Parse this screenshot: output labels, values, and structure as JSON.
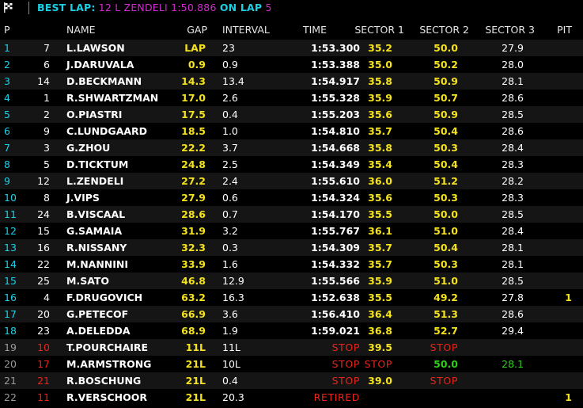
{
  "topbar": {
    "best_lap_label": "BEST LAP:",
    "best_lap_detail": "12 L ZENDELI 1:50.886",
    "on_lap_label": "ON LAP",
    "on_lap_value": "5"
  },
  "columns": {
    "pos": "P",
    "name": "NAME",
    "gap": "GAP",
    "interval": "INTERVAL",
    "time": "TIME",
    "s1": "SECTOR 1",
    "s2": "SECTOR 2",
    "s3": "SECTOR 3",
    "pit": "PIT"
  },
  "colors": {
    "accent_cyan": "#19d0e6",
    "accent_magenta": "#d22ad0",
    "yellow": "#f3e21d",
    "red": "#e8251b",
    "green": "#2ed11a",
    "grey": "#9a9a9a"
  },
  "rows": [
    {
      "pos": "1",
      "no": "7",
      "name": "L.LAWSON",
      "gap": "LAP",
      "interval": "23",
      "time": "1:53.300",
      "s1": "35.2",
      "s2": "50.0",
      "s3": "27.9",
      "pit": "",
      "status": "running"
    },
    {
      "pos": "2",
      "no": "6",
      "name": "J.DARUVALA",
      "gap": "0.9",
      "interval": "0.9",
      "time": "1:53.388",
      "s1": "35.0",
      "s2": "50.2",
      "s3": "28.0",
      "pit": "",
      "status": "running"
    },
    {
      "pos": "3",
      "no": "14",
      "name": "D.BECKMANN",
      "gap": "14.3",
      "interval": "13.4",
      "time": "1:54.917",
      "s1": "35.8",
      "s2": "50.9",
      "s3": "28.1",
      "pit": "",
      "status": "running"
    },
    {
      "pos": "4",
      "no": "1",
      "name": "R.SHWARTZMAN",
      "gap": "17.0",
      "interval": "2.6",
      "time": "1:55.328",
      "s1": "35.9",
      "s2": "50.7",
      "s3": "28.6",
      "pit": "",
      "status": "running"
    },
    {
      "pos": "5",
      "no": "2",
      "name": "O.PIASTRI",
      "gap": "17.5",
      "interval": "0.4",
      "time": "1:55.203",
      "s1": "35.6",
      "s2": "50.9",
      "s3": "28.5",
      "pit": "",
      "status": "running"
    },
    {
      "pos": "6",
      "no": "9",
      "name": "C.LUNDGAARD",
      "gap": "18.5",
      "interval": "1.0",
      "time": "1:54.810",
      "s1": "35.7",
      "s2": "50.4",
      "s3": "28.6",
      "pit": "",
      "status": "running"
    },
    {
      "pos": "7",
      "no": "3",
      "name": "G.ZHOU",
      "gap": "22.2",
      "interval": "3.7",
      "time": "1:54.668",
      "s1": "35.8",
      "s2": "50.3",
      "s3": "28.4",
      "pit": "",
      "status": "running"
    },
    {
      "pos": "8",
      "no": "5",
      "name": "D.TICKTUM",
      "gap": "24.8",
      "interval": "2.5",
      "time": "1:54.349",
      "s1": "35.4",
      "s2": "50.4",
      "s3": "28.3",
      "pit": "",
      "status": "running"
    },
    {
      "pos": "9",
      "no": "12",
      "name": "L.ZENDELI",
      "gap": "27.2",
      "interval": "2.4",
      "time": "1:55.610",
      "s1": "36.0",
      "s2": "51.2",
      "s3": "28.2",
      "pit": "",
      "status": "running"
    },
    {
      "pos": "10",
      "no": "8",
      "name": "J.VIPS",
      "gap": "27.9",
      "interval": "0.6",
      "time": "1:54.324",
      "s1": "35.6",
      "s2": "50.3",
      "s3": "28.3",
      "pit": "",
      "status": "running"
    },
    {
      "pos": "11",
      "no": "24",
      "name": "B.VISCAAL",
      "gap": "28.6",
      "interval": "0.7",
      "time": "1:54.170",
      "s1": "35.5",
      "s2": "50.0",
      "s3": "28.5",
      "pit": "",
      "status": "running"
    },
    {
      "pos": "12",
      "no": "15",
      "name": "G.SAMAIA",
      "gap": "31.9",
      "interval": "3.2",
      "time": "1:55.767",
      "s1": "36.1",
      "s2": "51.0",
      "s3": "28.4",
      "pit": "",
      "status": "running"
    },
    {
      "pos": "13",
      "no": "16",
      "name": "R.NISSANY",
      "gap": "32.3",
      "interval": "0.3",
      "time": "1:54.309",
      "s1": "35.7",
      "s2": "50.4",
      "s3": "28.1",
      "pit": "",
      "status": "running"
    },
    {
      "pos": "14",
      "no": "22",
      "name": "M.NANNINI",
      "gap": "33.9",
      "interval": "1.6",
      "time": "1:54.332",
      "s1": "35.7",
      "s2": "50.3",
      "s3": "28.1",
      "pit": "",
      "status": "running"
    },
    {
      "pos": "15",
      "no": "25",
      "name": "M.SATO",
      "gap": "46.8",
      "interval": "12.9",
      "time": "1:55.566",
      "s1": "35.9",
      "s2": "51.0",
      "s3": "28.5",
      "pit": "",
      "status": "running"
    },
    {
      "pos": "16",
      "no": "4",
      "name": "F.DRUGOVICH",
      "gap": "63.2",
      "interval": "16.3",
      "time": "1:52.638",
      "s1": "35.5",
      "s2": "49.2",
      "s3": "27.8",
      "pit": "1",
      "status": "running"
    },
    {
      "pos": "17",
      "no": "20",
      "name": "G.PETECOF",
      "gap": "66.9",
      "interval": "3.6",
      "time": "1:56.410",
      "s1": "36.4",
      "s2": "51.3",
      "s3": "28.6",
      "pit": "",
      "status": "running"
    },
    {
      "pos": "18",
      "no": "23",
      "name": "A.DELEDDA",
      "gap": "68.9",
      "interval": "1.9",
      "time": "1:59.021",
      "s1": "36.8",
      "s2": "52.7",
      "s3": "29.4",
      "pit": "",
      "status": "running"
    },
    {
      "pos": "19",
      "no": "10",
      "name": "T.POURCHAIRE",
      "gap": "11L",
      "interval": "11L",
      "time": "STOP",
      "s1": "39.5",
      "s2": "STOP",
      "s3": "",
      "pit": "",
      "status": "out"
    },
    {
      "pos": "20",
      "no": "17",
      "name": "M.ARMSTRONG",
      "gap": "21L",
      "interval": "10L",
      "time": "STOP",
      "s1": "STOP",
      "s2": "50.0",
      "s3": "28.1",
      "pit": "",
      "status": "out"
    },
    {
      "pos": "21",
      "no": "21",
      "name": "R.BOSCHUNG",
      "gap": "21L",
      "interval": "0.4",
      "time": "STOP",
      "s1": "39.0",
      "s2": "STOP",
      "s3": "",
      "pit": "",
      "status": "out"
    },
    {
      "pos": "22",
      "no": "11",
      "name": "R.VERSCHOOR",
      "gap": "21L",
      "interval": "20.3",
      "time": "RETIRED",
      "s1": "",
      "s2": "",
      "s3": "",
      "pit": "1",
      "status": "out"
    }
  ]
}
